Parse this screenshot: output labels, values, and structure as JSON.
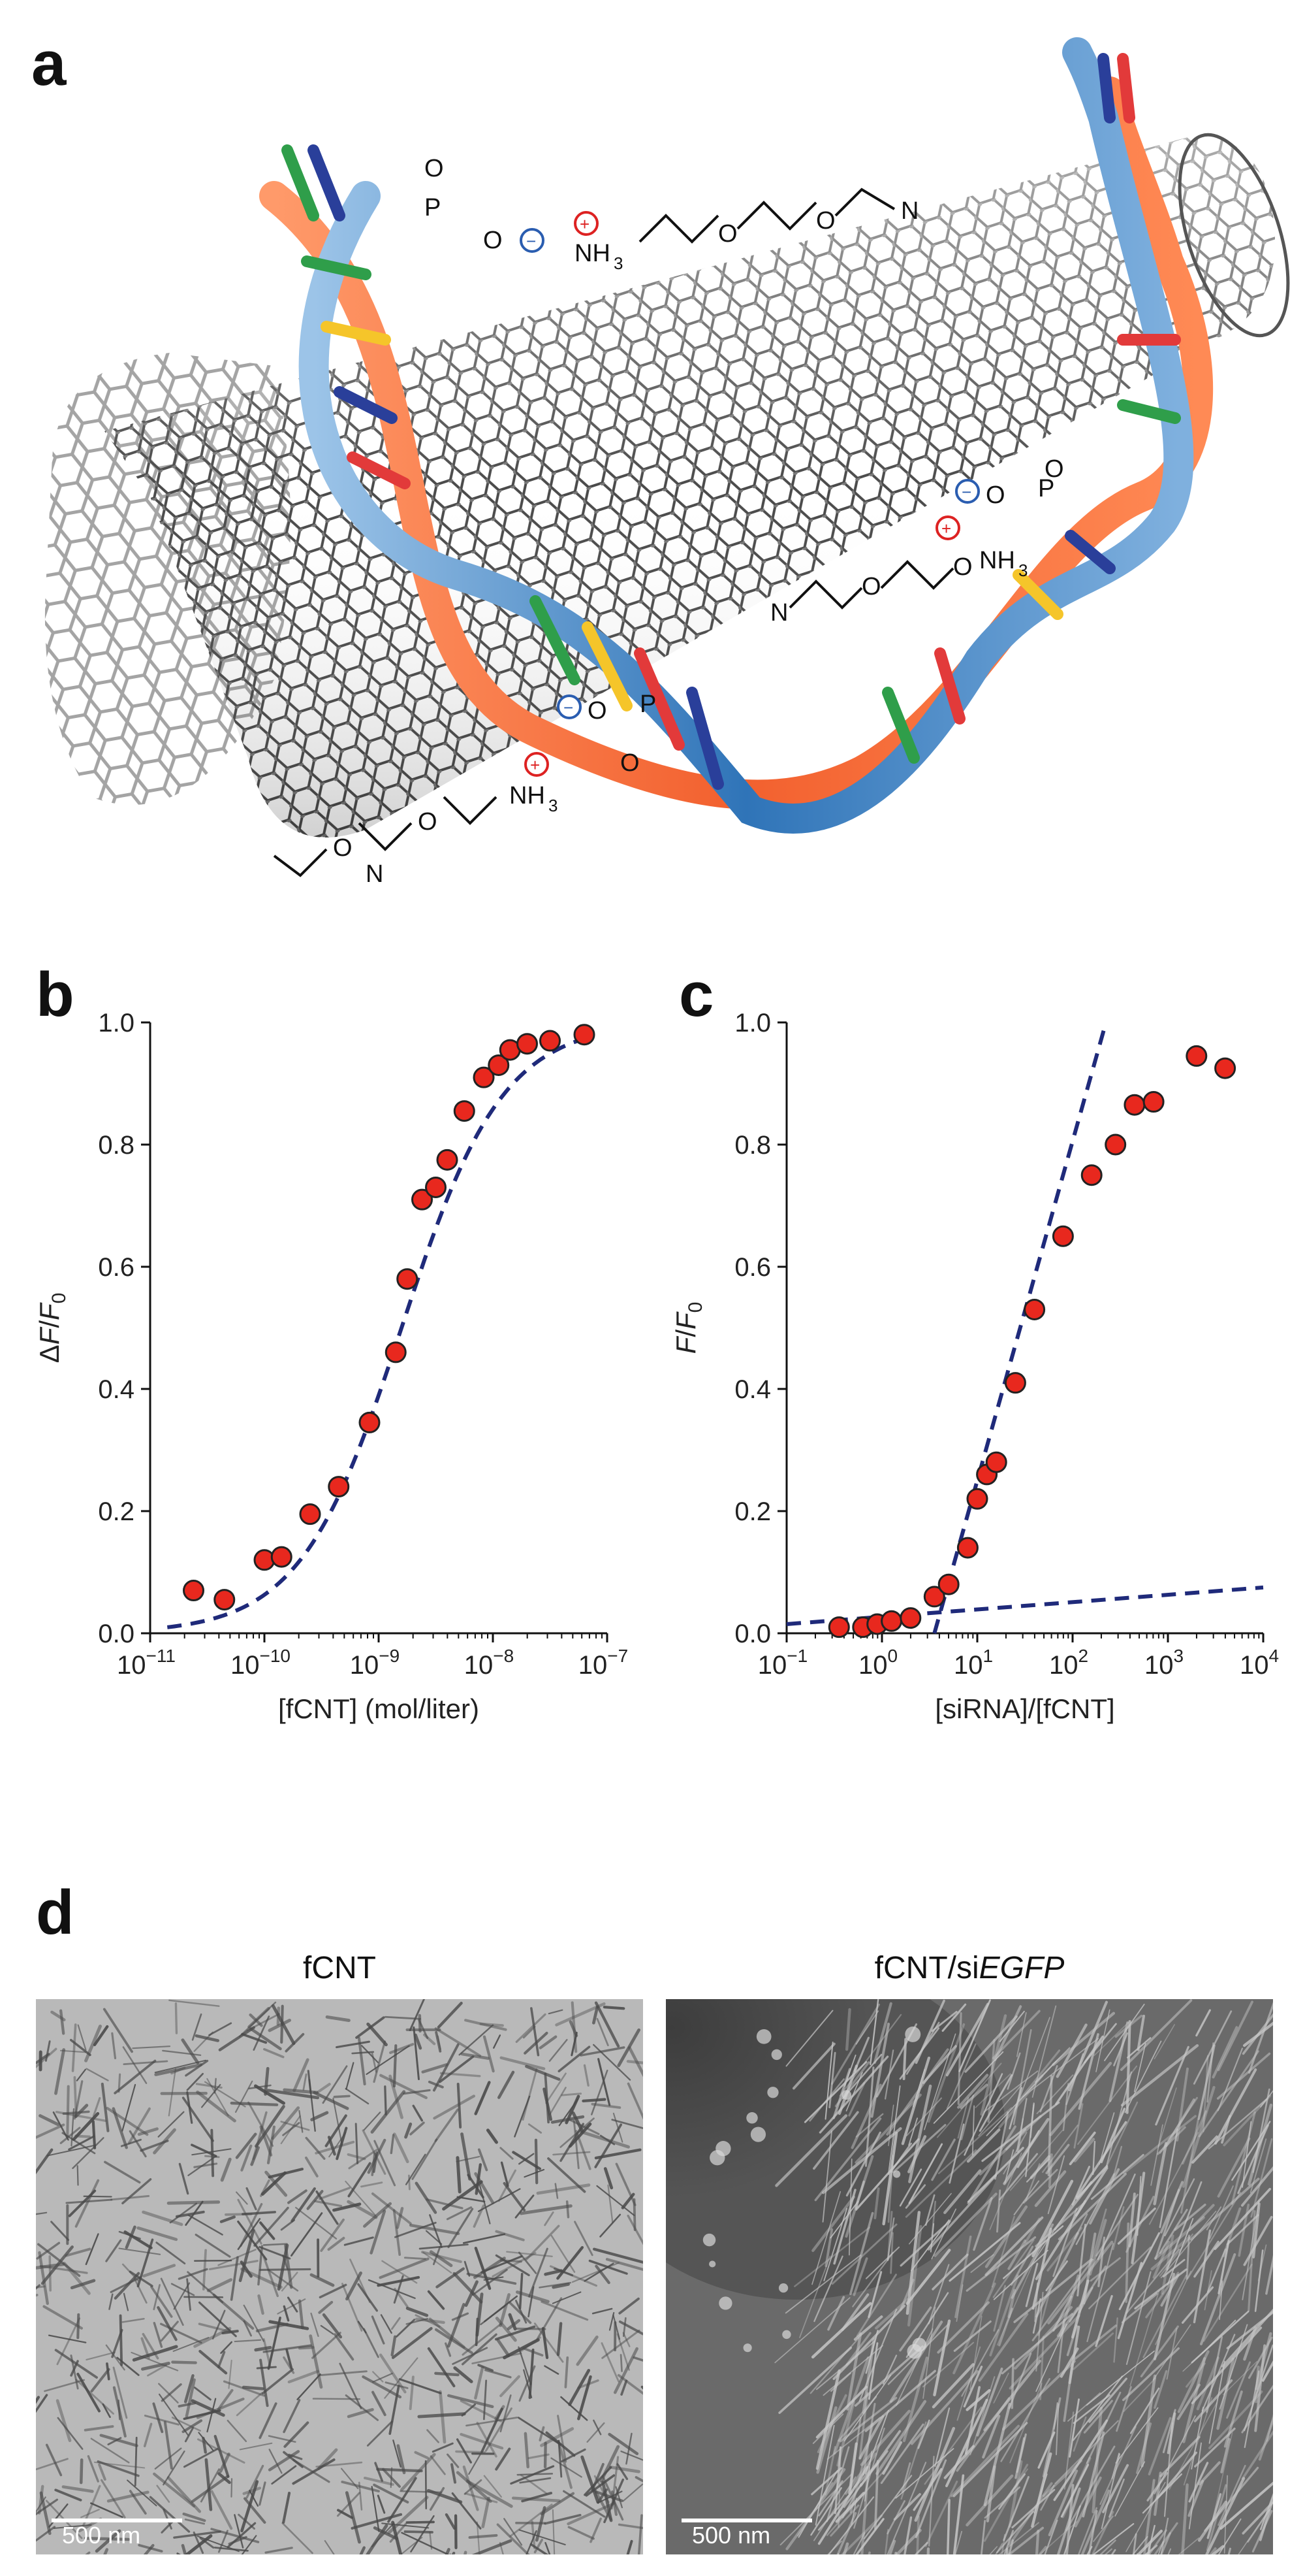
{
  "panel_labels": {
    "a": "a",
    "b": "b",
    "c": "c",
    "d": "d"
  },
  "panel_a": {
    "chem_labels": {
      "nh3_top": "NH",
      "nh3_mid": "NH",
      "nh3_bottom": "NH",
      "subscript_3": "3",
      "oxygen": "O",
      "nitrogen": "N",
      "phosphorus": "P",
      "plus": "+",
      "minus": "−"
    },
    "colors": {
      "ribbon_orange": "#f26b3a",
      "ribbon_blue": "#3a7fc1",
      "nanotube_dark": "#4a4a4a",
      "nanotube_light": "#9a9a9a"
    }
  },
  "chart_data": [
    {
      "type": "scatter",
      "panel": "b",
      "xscale": "log",
      "xlabel": "[fCNT] (mol/liter)",
      "ylabel_parts": [
        "Δ",
        "F",
        "/",
        "F",
        "0"
      ],
      "xlim_exp": [
        -11,
        -7
      ],
      "ylim": [
        0,
        1.0
      ],
      "yticks": [
        "0.0",
        "0.2",
        "0.4",
        "0.6",
        "0.8",
        "1.0"
      ],
      "xticks": [
        {
          "base": "10",
          "exp": "−11"
        },
        {
          "base": "10",
          "exp": "−10"
        },
        {
          "base": "10",
          "exp": "−9"
        },
        {
          "base": "10",
          "exp": "−8"
        },
        {
          "base": "10",
          "exp": "−7"
        }
      ],
      "series": [
        {
          "name": "measured",
          "x_exp": [
            -10.62,
            -10.35,
            -10.0,
            -9.85,
            -9.6,
            -9.35,
            -9.08,
            -8.85,
            -8.75,
            -8.62,
            -8.5,
            -8.4,
            -8.25,
            -8.08,
            -7.95,
            -7.85,
            -7.7,
            -7.5,
            -7.2
          ],
          "y": [
            0.07,
            0.055,
            0.12,
            0.125,
            0.195,
            0.24,
            0.345,
            0.46,
            0.58,
            0.71,
            0.73,
            0.775,
            0.855,
            0.91,
            0.93,
            0.955,
            0.965,
            0.97,
            0.98
          ]
        },
        {
          "name": "fit",
          "style": "dashed",
          "fit": {
            "model": "logistic",
            "midpoint_exp": -8.8,
            "slope": 2.25
          }
        }
      ]
    },
    {
      "type": "scatter",
      "panel": "c",
      "xscale": "log",
      "xlabel": "[siRNA]/[fCNT]",
      "ylabel_parts": [
        "F",
        "/",
        "F",
        "0"
      ],
      "xlim_exp": [
        -1,
        4
      ],
      "ylim": [
        0,
        1.0
      ],
      "yticks": [
        "0.0",
        "0.2",
        "0.4",
        "0.6",
        "0.8",
        "1.0"
      ],
      "xticks": [
        {
          "base": "10",
          "exp": "−1"
        },
        {
          "base": "10",
          "exp": "0"
        },
        {
          "base": "10",
          "exp": "1"
        },
        {
          "base": "10",
          "exp": "2"
        },
        {
          "base": "10",
          "exp": "3"
        },
        {
          "base": "10",
          "exp": "4"
        }
      ],
      "series": [
        {
          "name": "measured",
          "x_exp": [
            -0.45,
            -0.2,
            -0.05,
            0.1,
            0.3,
            0.55,
            0.7,
            0.9,
            1.0,
            1.1,
            1.2,
            1.4,
            1.6,
            1.9,
            2.2,
            2.45,
            2.65,
            2.85,
            3.3,
            3.6
          ],
          "y": [
            0.01,
            0.01,
            0.015,
            0.02,
            0.025,
            0.06,
            0.08,
            0.14,
            0.22,
            0.26,
            0.28,
            0.41,
            0.53,
            0.65,
            0.75,
            0.8,
            0.865,
            0.87,
            0.945,
            0.925
          ]
        },
        {
          "name": "low-ratio fit",
          "style": "dashed",
          "line": {
            "x_exp": [
              -1,
              4
            ],
            "y": [
              0.015,
              0.075
            ]
          }
        },
        {
          "name": "high-ratio fit",
          "style": "dashed",
          "line": {
            "x_exp": [
              0.55,
              2.35
            ],
            "y": [
              0.0,
              1.0
            ]
          }
        }
      ]
    }
  ],
  "panel_d": {
    "left": {
      "title": "fCNT",
      "scale_label": "500 nm"
    },
    "right": {
      "title_plain": "fCNT/si",
      "title_italic": "EGFP",
      "scale_label": "500 nm"
    }
  }
}
